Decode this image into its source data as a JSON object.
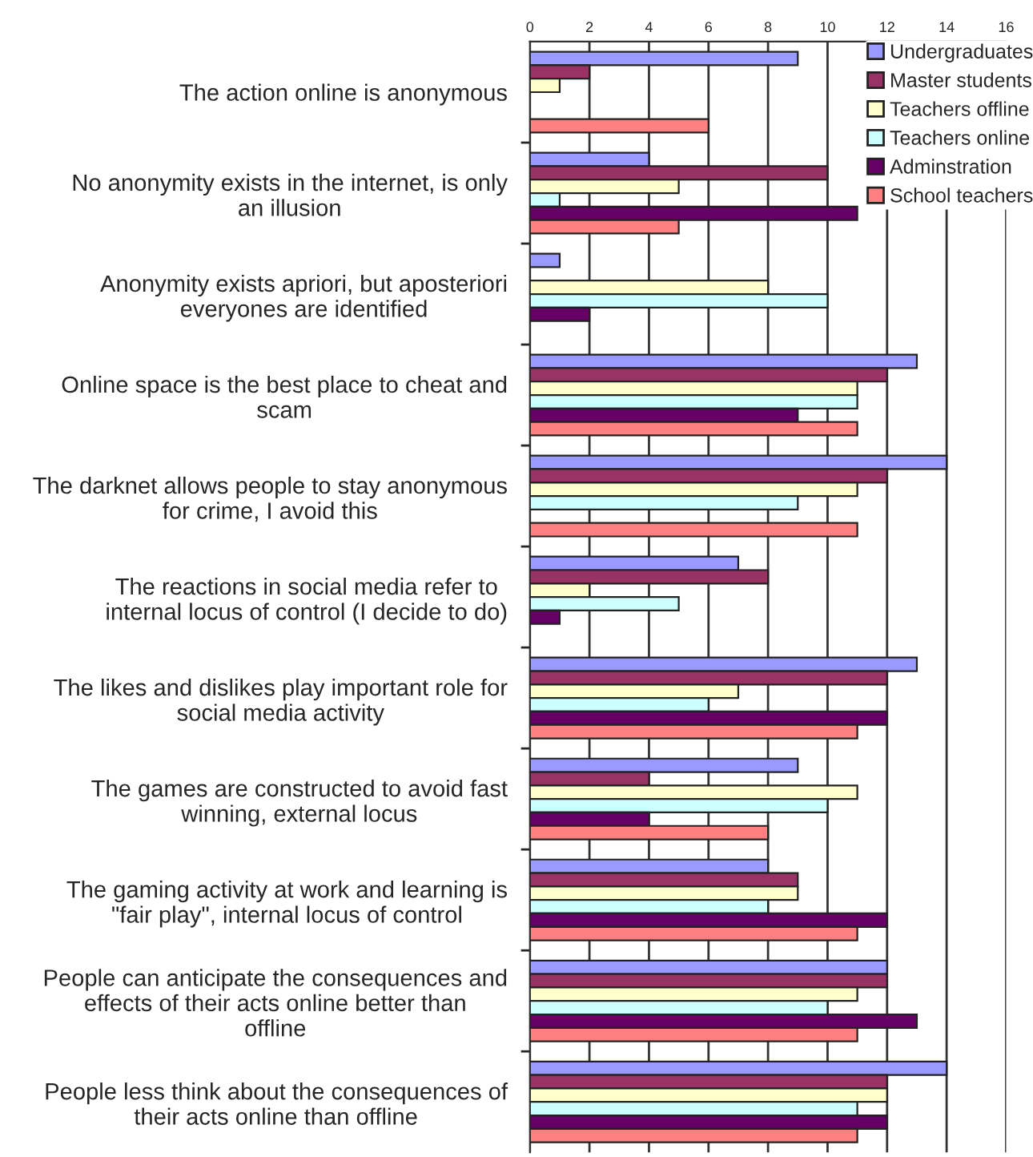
{
  "chart_data": {
    "type": "bar",
    "orientation": "horizontal",
    "categories": [
      "The action online is anonymous",
      "No anonymity exists in the internet, is only an illusion",
      "Anonymity exists apriori, but aposteriori everyones are identified",
      "Online space is the best place to cheat and scam",
      "The darknet allows people to stay anonymous for crime, I avoid this",
      "The reactions in social media refer to internal locus of control (I decide to do)",
      "The likes and dislikes play important role for social media activity",
      "The games are constructed to avoid fast winning, external locus",
      "The gaming activity at work and learning is \"fair play\", internal locus of control",
      "People can anticipate the consequences and effects of their acts online better than offline",
      "People less think about the consequences of their acts online than offline"
    ],
    "series": [
      {
        "name": "Undergraduates",
        "color": "#9999ff",
        "values": [
          9,
          4,
          1,
          13,
          14,
          7,
          13,
          9,
          8,
          12,
          14
        ]
      },
      {
        "name": "Master students",
        "color": "#993366",
        "values": [
          2,
          10,
          null,
          12,
          12,
          8,
          12,
          4,
          9,
          12,
          12
        ]
      },
      {
        "name": "Teachers offline",
        "color": "#ffffcc",
        "values": [
          1,
          5,
          8,
          11,
          11,
          2,
          7,
          11,
          9,
          11,
          12
        ]
      },
      {
        "name": "Teachers online",
        "color": "#ccffff",
        "values": [
          null,
          1,
          10,
          11,
          9,
          5,
          6,
          10,
          8,
          10,
          11
        ]
      },
      {
        "name": "Adminstration",
        "color": "#660066",
        "values": [
          null,
          11,
          2,
          9,
          null,
          1,
          12,
          4,
          12,
          13,
          12
        ]
      },
      {
        "name": "School teachers",
        "color": "#ff8080",
        "values": [
          6,
          5,
          null,
          11,
          11,
          null,
          11,
          8,
          11,
          11,
          11
        ]
      }
    ],
    "xlim": [
      0,
      16
    ],
    "xticks": [
      0,
      2,
      4,
      6,
      8,
      10,
      12,
      14,
      16
    ],
    "grid": "x",
    "legend": "top right"
  }
}
